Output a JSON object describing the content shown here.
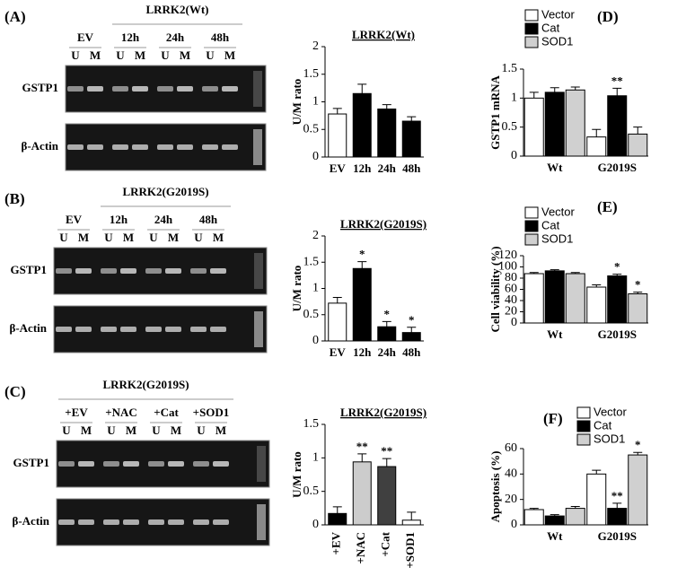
{
  "gels": [
    {
      "label": "(A)",
      "group": "LRRK2(Wt)",
      "lanes": [
        "EV",
        "12h",
        "24h",
        "48h"
      ],
      "lane_letters": [
        "U",
        "M"
      ],
      "rows": [
        "GSTP1",
        "β-Actin"
      ]
    },
    {
      "label": "(B)",
      "group": "LRRK2(G2019S)",
      "lanes": [
        "EV",
        "12h",
        "24h",
        "48h"
      ],
      "lane_letters": [
        "U",
        "M"
      ],
      "rows": [
        "GSTP1",
        "β-Actin"
      ]
    },
    {
      "label": "(C)",
      "group": "LRRK2(G2019S)",
      "lanes": [
        "+EV",
        "+NAC",
        "+Cat",
        "+SOD1"
      ],
      "lane_letters": [
        "U",
        "M"
      ],
      "rows": [
        "GSTP1",
        "β-Actin"
      ]
    }
  ],
  "chart_data": [
    {
      "type": "bar",
      "title": "LRRK2(Wt)",
      "y_label": "U/M rato",
      "categories": [
        "EV",
        "12h",
        "24h",
        "48h"
      ],
      "values": [
        0.78,
        1.15,
        0.87,
        0.65
      ],
      "errors": [
        0.1,
        0.17,
        0.08,
        0.08
      ],
      "colors": [
        "#ffffff",
        "#000000",
        "#000000",
        "#000000"
      ],
      "ylim": [
        0,
        2
      ],
      "yticks": [
        0,
        0.5,
        1,
        1.5,
        2
      ]
    },
    {
      "type": "bar",
      "title": "LRRK2(G2019S)",
      "y_label": "U/M rato",
      "categories": [
        "EV",
        "12h",
        "24h",
        "48h"
      ],
      "values": [
        0.72,
        1.38,
        0.27,
        0.16
      ],
      "errors": [
        0.11,
        0.13,
        0.1,
        0.1
      ],
      "annotations": [
        null,
        "*",
        "*",
        "*"
      ],
      "colors": [
        "#ffffff",
        "#000000",
        "#000000",
        "#000000"
      ],
      "ylim": [
        0,
        2
      ],
      "yticks": [
        0,
        0.5,
        1,
        1.5,
        2
      ]
    },
    {
      "type": "bar",
      "title": "LRRK2(G2019S)",
      "y_label": "U/M rato",
      "categories": [
        "+EV",
        "+NAC",
        "+Cat",
        "+SOD1"
      ],
      "values": [
        0.17,
        0.94,
        0.87,
        0.07
      ],
      "errors": [
        0.1,
        0.12,
        0.12,
        0.12
      ],
      "annotations": [
        null,
        "**",
        "**",
        null
      ],
      "colors": [
        "#000000",
        "#cccccc",
        "#404040",
        "#ffffff"
      ],
      "ylim": [
        0,
        1.5
      ],
      "yticks": [
        0,
        0.5,
        1,
        1.5
      ]
    },
    {
      "type": "grouped_bar",
      "panel": "(D)",
      "y_label": "GSTP1 mRNA",
      "categories": [
        "Wt",
        "G2019S"
      ],
      "ylim": [
        0,
        1.5
      ],
      "yticks": [
        0,
        0.5,
        1,
        1.5
      ],
      "series": [
        {
          "name": "Vector",
          "color": "#ffffff",
          "values": [
            1.0,
            0.33
          ],
          "errors": [
            0.1,
            0.13
          ]
        },
        {
          "name": "Cat",
          "color": "#000000",
          "values": [
            1.1,
            1.04
          ],
          "errors": [
            0.08,
            0.13
          ],
          "annotations": [
            null,
            "**"
          ]
        },
        {
          "name": "SOD1",
          "color": "#d0d0d0",
          "values": [
            1.14,
            0.38
          ],
          "errors": [
            0.05,
            0.12
          ]
        }
      ]
    },
    {
      "type": "grouped_bar",
      "panel": "(E)",
      "y_label": "Cell viability (%)",
      "categories": [
        "Wt",
        "G2019S"
      ],
      "ylim": [
        0,
        120
      ],
      "yticks": [
        0,
        20,
        40,
        60,
        80,
        100,
        120
      ],
      "series": [
        {
          "name": "Vector",
          "color": "#ffffff",
          "values": [
            88,
            64
          ],
          "errors": [
            2,
            4
          ]
        },
        {
          "name": "Cat",
          "color": "#000000",
          "values": [
            93,
            84
          ],
          "errors": [
            2,
            3
          ],
          "annotations": [
            null,
            "*"
          ]
        },
        {
          "name": "SOD1",
          "color": "#d0d0d0",
          "values": [
            88,
            52
          ],
          "errors": [
            2,
            3
          ],
          "annotations": [
            null,
            "*"
          ]
        }
      ]
    },
    {
      "type": "grouped_bar",
      "panel": "(F)",
      "y_label": "Apoptosis (%)",
      "categories": [
        "Wt",
        "G2019S"
      ],
      "ylim": [
        0,
        60
      ],
      "yticks": [
        0,
        20,
        40,
        60
      ],
      "series": [
        {
          "name": "Vector",
          "color": "#ffffff",
          "values": [
            12,
            40
          ],
          "errors": [
            1,
            3
          ]
        },
        {
          "name": "Cat",
          "color": "#000000",
          "values": [
            7,
            13
          ],
          "errors": [
            1,
            4
          ],
          "annotations": [
            null,
            "**"
          ]
        },
        {
          "name": "SOD1",
          "color": "#d0d0d0",
          "values": [
            13,
            55
          ],
          "errors": [
            1.5,
            2
          ],
          "annotations": [
            null,
            "*"
          ]
        }
      ]
    }
  ]
}
